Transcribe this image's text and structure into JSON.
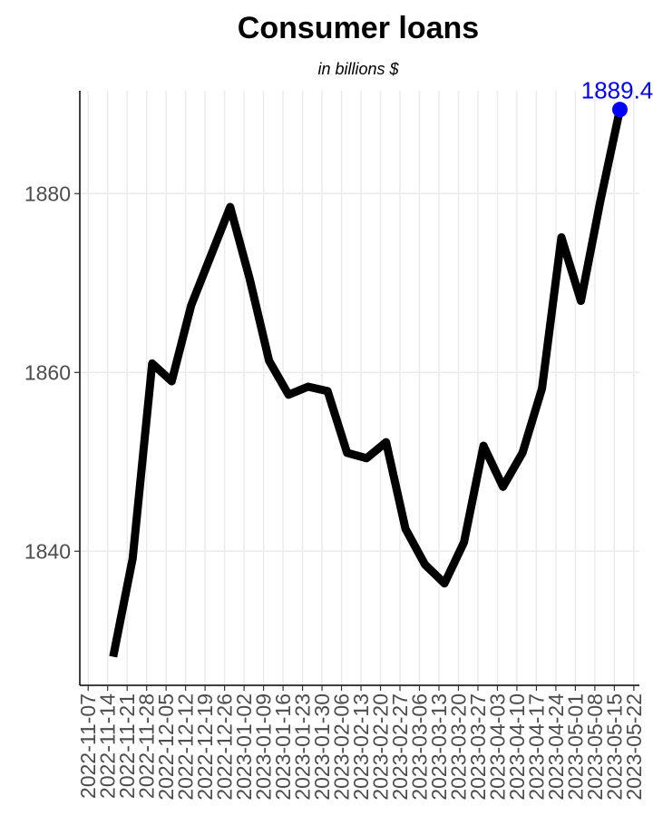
{
  "chart_data": {
    "type": "line",
    "title": "Consumer loans",
    "subtitle": "in billions $",
    "xlabel": "",
    "ylabel": "",
    "x_ticks": [
      "2022-11-07",
      "2022-11-14",
      "2022-11-21",
      "2022-11-28",
      "2022-12-05",
      "2022-12-12",
      "2022-12-19",
      "2022-12-26",
      "2023-01-02",
      "2023-01-09",
      "2023-01-16",
      "2023-01-23",
      "2023-01-30",
      "2023-02-06",
      "2023-02-13",
      "2023-02-20",
      "2023-02-27",
      "2023-03-06",
      "2023-03-13",
      "2023-03-20",
      "2023-03-27",
      "2023-04-03",
      "2023-04-10",
      "2023-04-17",
      "2023-04-24",
      "2023-05-01",
      "2023-05-08",
      "2023-05-15",
      "2023-05-22"
    ],
    "y_ticks": [
      1840,
      1860,
      1880
    ],
    "ylim": [
      1825,
      1891.5
    ],
    "grid": true,
    "line_color": "#000000",
    "highlight_color": "#0000ff",
    "last_point_label": "1889.4",
    "series": [
      {
        "x": [
          "2022-11-16",
          "2022-11-23",
          "2022-11-30",
          "2022-12-07",
          "2022-12-14",
          "2022-12-21",
          "2022-12-28",
          "2023-01-04",
          "2023-01-11",
          "2023-01-18",
          "2023-01-25",
          "2023-02-01",
          "2023-02-08",
          "2023-02-15",
          "2023-02-22",
          "2023-03-01",
          "2023-03-08",
          "2023-03-15",
          "2023-03-22",
          "2023-03-29",
          "2023-04-05",
          "2023-04-12",
          "2023-04-19",
          "2023-04-26",
          "2023-05-03",
          "2023-05-10",
          "2023-05-17"
        ],
        "values": [
          1828.2,
          1839.2,
          1861.0,
          1859.0,
          1867.5,
          1873.0,
          1878.5,
          1870.5,
          1861.3,
          1857.5,
          1858.4,
          1857.9,
          1851.0,
          1850.4,
          1852.2,
          1842.5,
          1838.5,
          1836.4,
          1841.0,
          1851.8,
          1847.2,
          1851.0,
          1858.2,
          1875.1,
          1868.0,
          1879.2,
          1889.4
        ]
      }
    ]
  }
}
